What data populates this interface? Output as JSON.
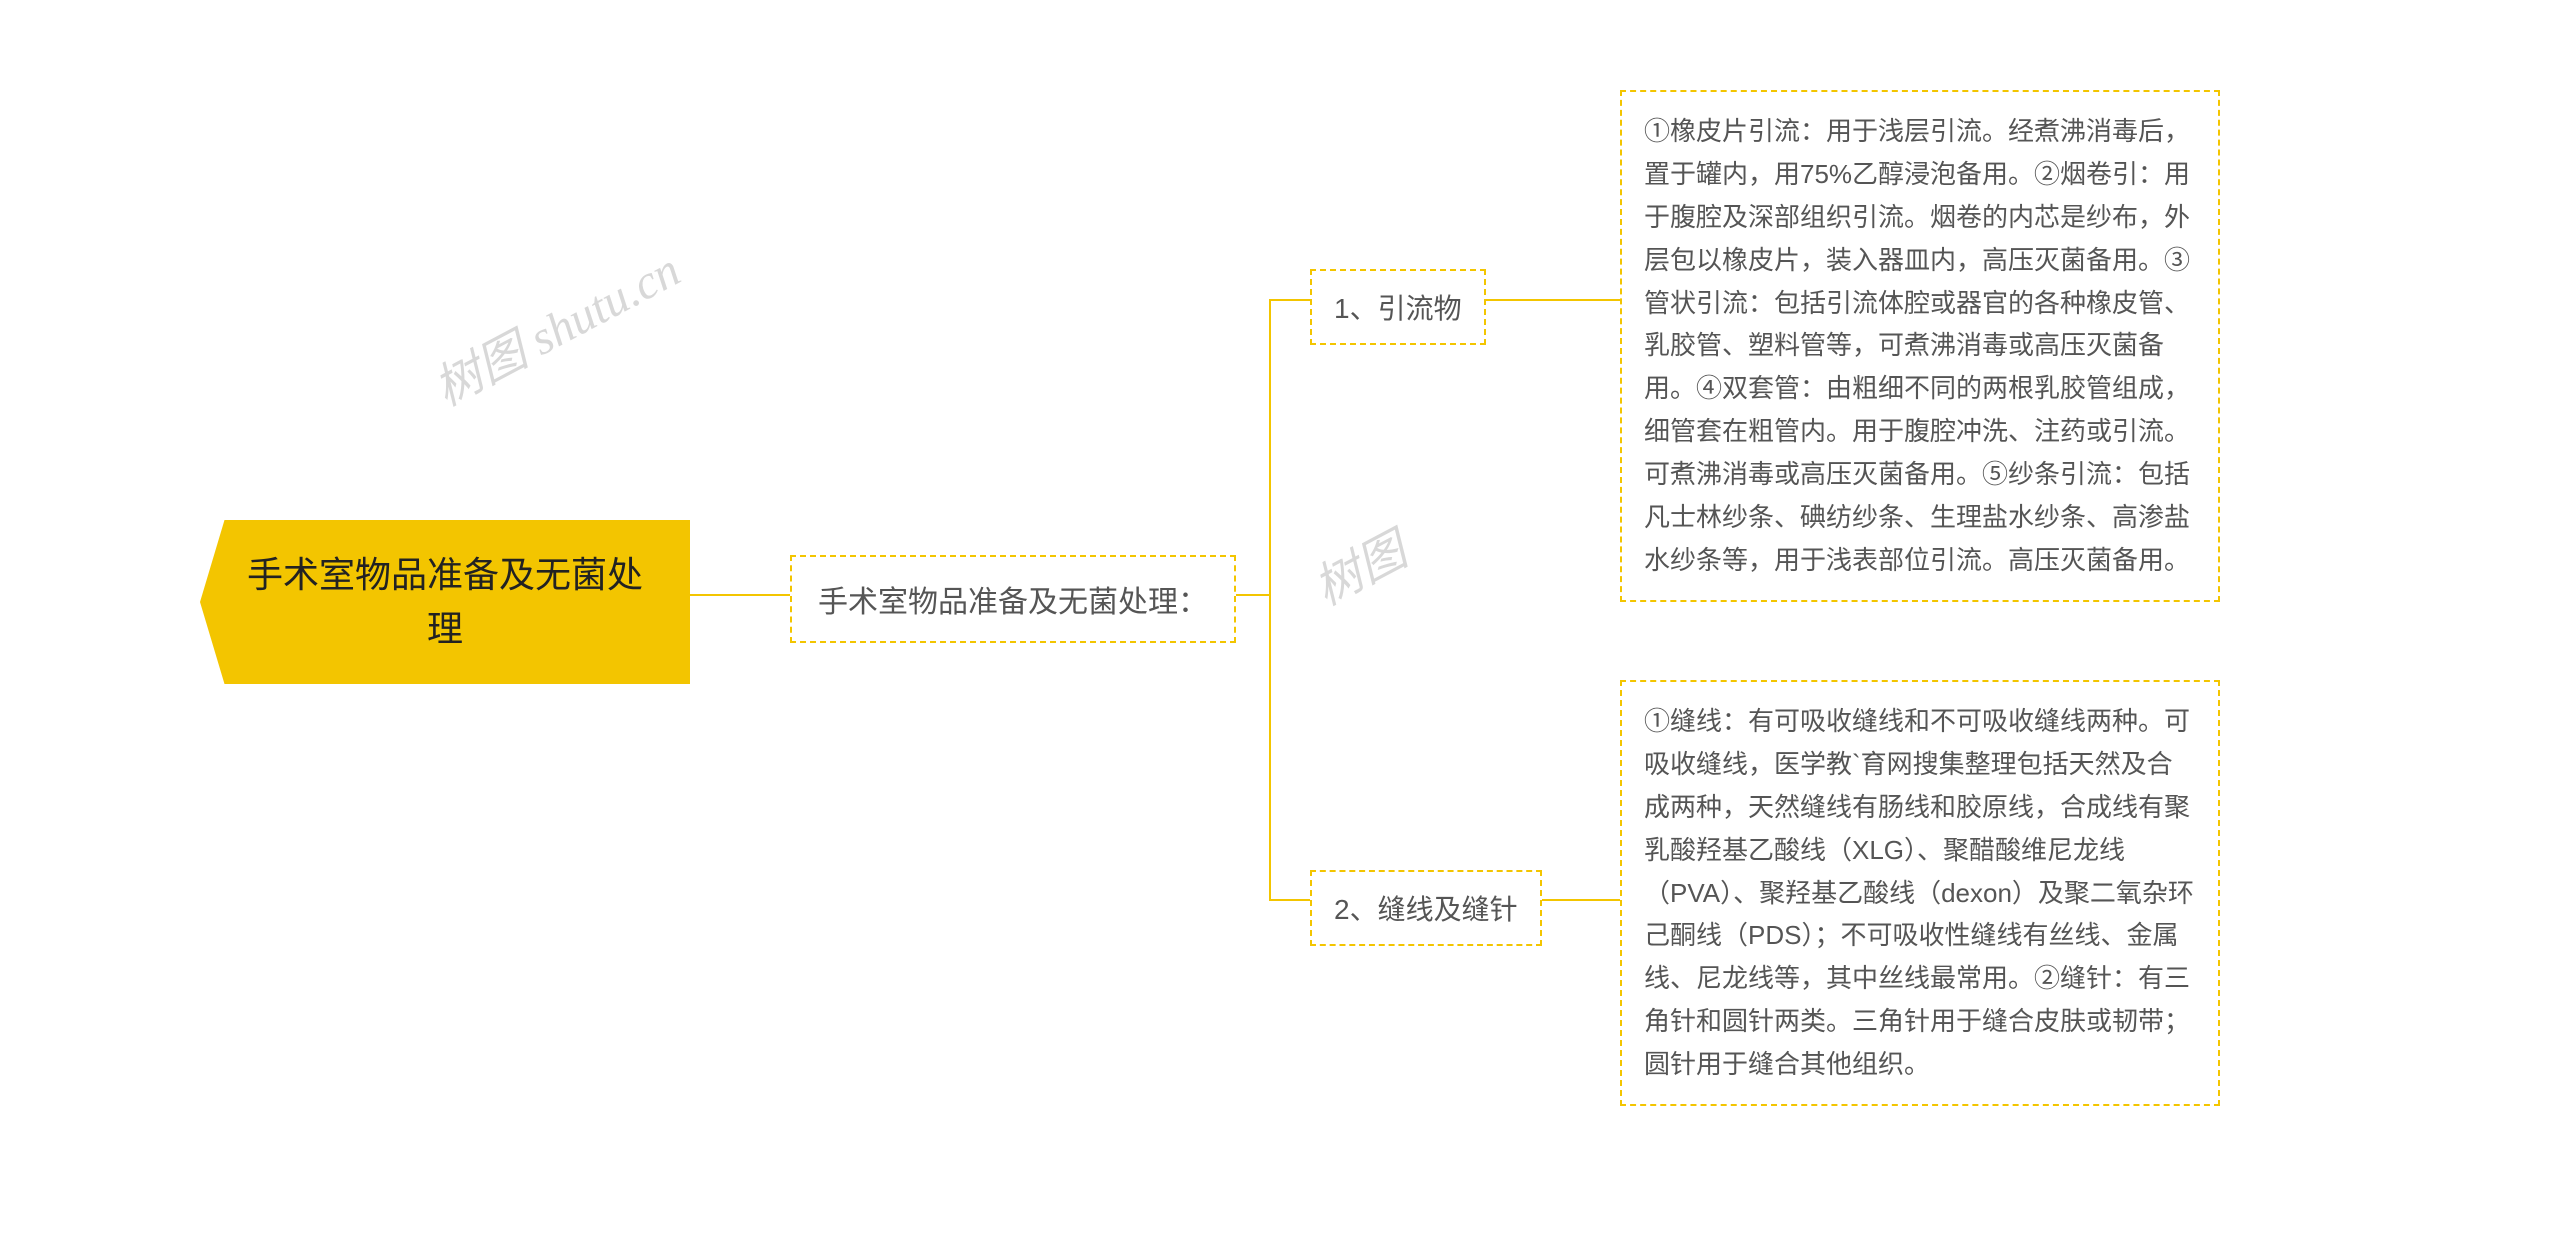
{
  "type": "mindmap",
  "background_color": "#ffffff",
  "accent_color": "#f3c500",
  "text_color_root": "#222222",
  "text_color_child": "#555555",
  "border_style": "dashed",
  "border_width": 2,
  "watermark_color": "#d8d8d8",
  "watermarks": [
    {
      "text": "树图 shutu.cn"
    },
    {
      "text": "树图"
    }
  ],
  "root": {
    "label": "手术室物品准备及无菌处\n理",
    "fontsize": 36,
    "bg_color": "#f3c500"
  },
  "level1": {
    "label": "手术室物品准备及无菌处理：",
    "fontsize": 30
  },
  "level2": [
    {
      "label": "1、引流物",
      "fontsize": 28
    },
    {
      "label": "2、缝线及缝针",
      "fontsize": 28
    }
  ],
  "leaves": [
    {
      "label": "①橡皮片引流：用于浅层引流。经煮沸消毒后，置于罐内，用75%乙醇浸泡备用。②烟卷引：用于腹腔及深部组织引流。烟卷的内芯是纱布，外层包以橡皮片，装入器皿内，高压灭菌备用。③管状引流：包括引流体腔或器官的各种橡皮管、乳胶管、塑料管等，可煮沸消毒或高压灭菌备用。④双套管：由粗细不同的两根乳胶管组成，细管套在粗管内。用于腹腔冲洗、注药或引流。可煮沸消毒或高压灭菌备用。⑤纱条引流：包括凡士林纱条、碘纺纱条、生理盐水纱条、高渗盐水纱条等，用于浅表部位引流。高压灭菌备用。",
      "fontsize": 26
    },
    {
      "label": "①缝线：有可吸收缝线和不可吸收缝线两种。可吸收缝线，医学教`育网搜集整理包括天然及合成两种，天然缝线有肠线和胶原线，合成线有聚乳酸羟基乙酸线（XLG）、聚醋酸维尼龙线（PVA）、聚羟基乙酸线（dexon）及聚二氧杂环己酮线（PDS）；不可吸收性缝线有丝线、金属线、尼龙线等，其中丝线最常用。②缝针：有三角针和圆针两类。三角针用于缝合皮肤或韧带；圆针用于缝合其他组织。",
      "fontsize": 26
    }
  ],
  "connectors": {
    "stroke": "#f3c500",
    "stroke_width": 2
  }
}
